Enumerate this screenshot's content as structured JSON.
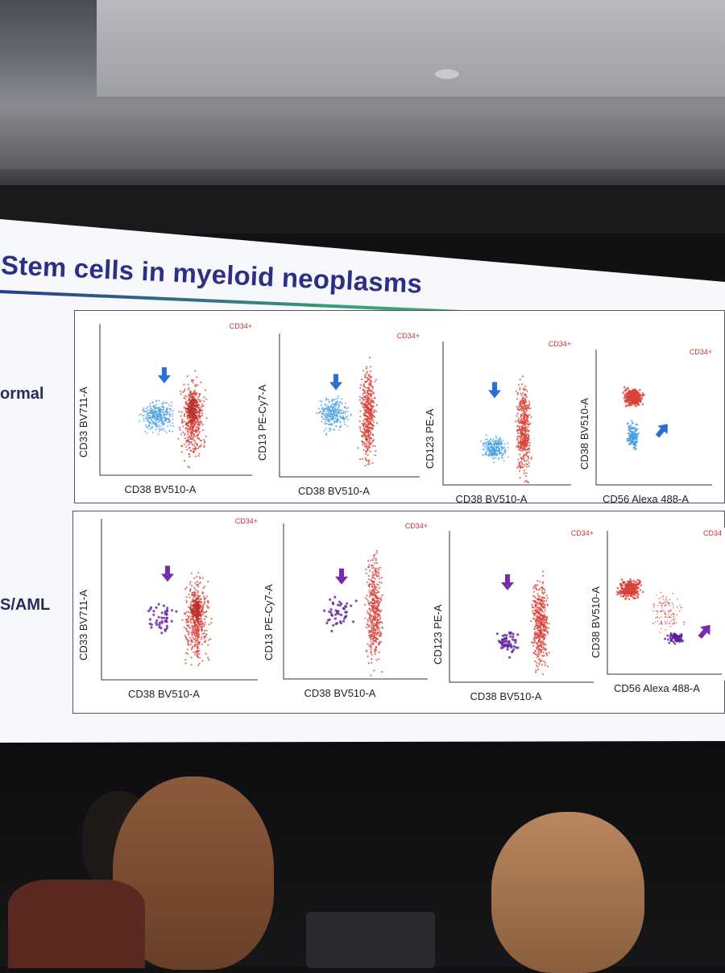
{
  "slide": {
    "title": "Stem cells in myeloid neoplasms",
    "rows": [
      {
        "label": "ormal",
        "cluster_color": "#4a9fe0",
        "arrow_color": "#2a6fd6",
        "plots": [
          {
            "y_label": "CD33 BV711-A",
            "x_label": "CD38 BV510-A",
            "gate": "CD34+"
          },
          {
            "y_label": "CD13 PE-Cy7-A",
            "x_label": "CD38 BV510-A",
            "gate": "CD34+"
          },
          {
            "y_label": "CD123 PE-A",
            "x_label": "CD38 BV510-A",
            "gate": "CD34+"
          },
          {
            "y_label": "CD38 BV510-A",
            "x_label": "CD56 Alexa 488-A",
            "gate": "CD34+"
          }
        ]
      },
      {
        "label": "S/AML",
        "cluster_color": "#5a1a9a",
        "arrow_color": "#7a2aae",
        "plots": [
          {
            "y_label": "CD33 BV711-A",
            "x_label": "CD38 BV510-A",
            "gate": "CD34+"
          },
          {
            "y_label": "CD13 PE-Cy7-A",
            "x_label": "CD38 BV510-A",
            "gate": "CD34+"
          },
          {
            "y_label": "CD123 PE-A",
            "x_label": "CD38 BV510-A",
            "gate": "CD34+"
          },
          {
            "y_label": "CD38 BV510-A",
            "x_label": "CD56 Alexa 488-A",
            "gate": "CD34"
          }
        ]
      }
    ],
    "main_population_color": "#d8413a"
  }
}
